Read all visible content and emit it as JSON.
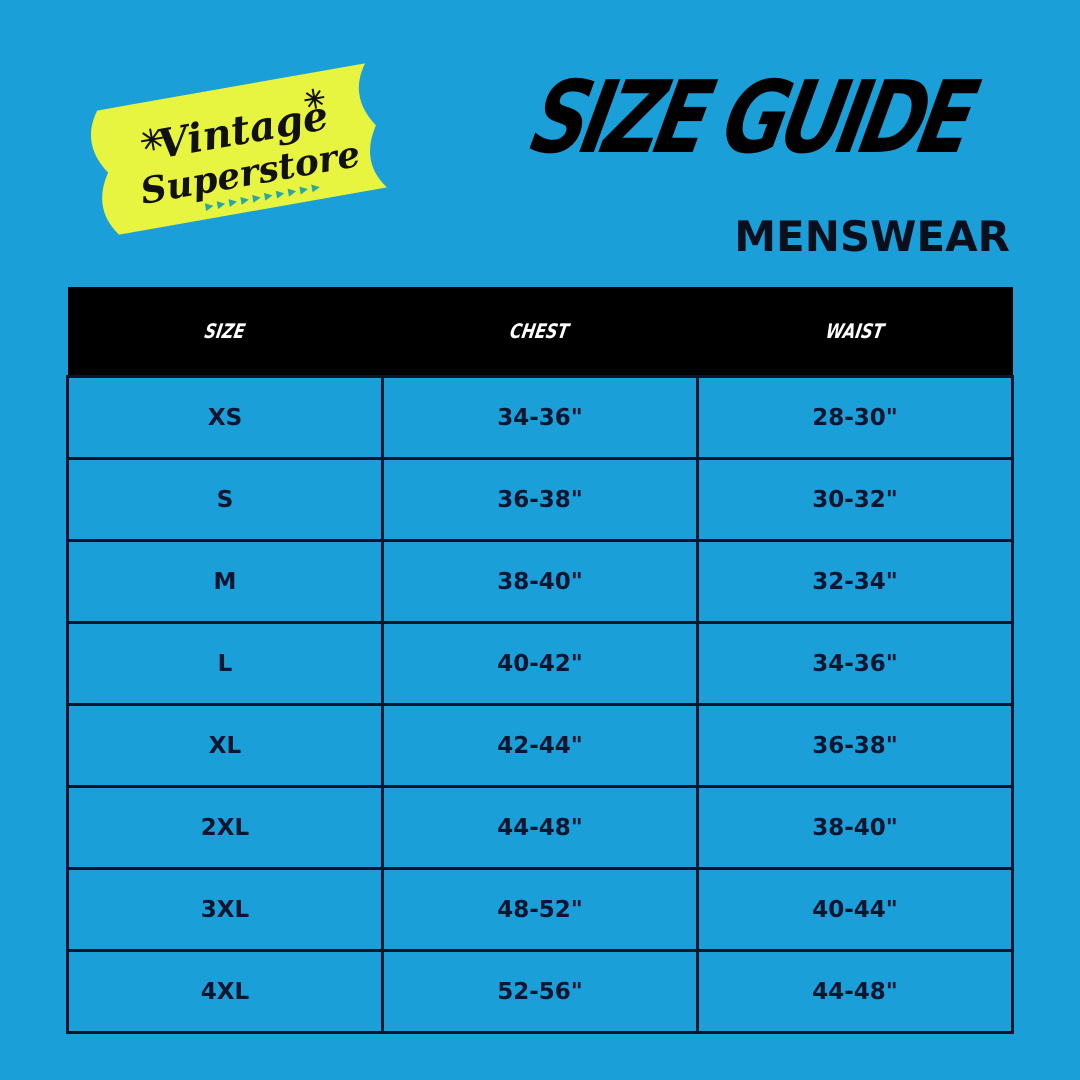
{
  "logo": {
    "line1": "Vintage",
    "line2": "Superstore",
    "badge_color": "#e8f540",
    "accent_color": "#2aa6a0"
  },
  "title": "SIZE GUIDE",
  "subtitle": "MENSWEAR",
  "table": {
    "headers": [
      "SIZE",
      "CHEST",
      "WAIST"
    ],
    "rows": [
      [
        "XS",
        "34-36\"",
        "28-30\""
      ],
      [
        "S",
        "36-38\"",
        "30-32\""
      ],
      [
        "M",
        "38-40\"",
        "32-34\""
      ],
      [
        "L",
        "40-42\"",
        "34-36\""
      ],
      [
        "XL",
        "42-44\"",
        "36-38\""
      ],
      [
        "2XL",
        "44-48\"",
        "38-40\""
      ],
      [
        "3XL",
        "48-52\"",
        "40-44\""
      ],
      [
        "4XL",
        "52-56\"",
        "44-48\""
      ]
    ]
  }
}
